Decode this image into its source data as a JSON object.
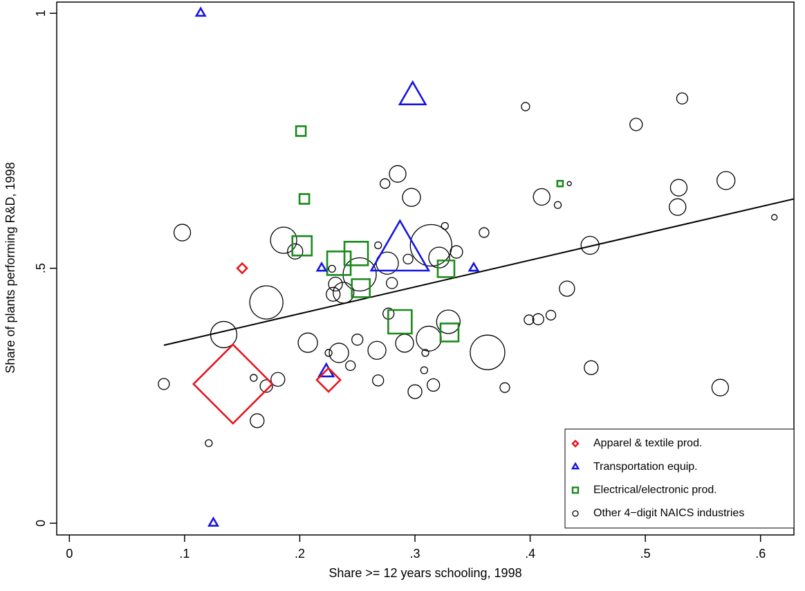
{
  "chart_data": {
    "type": "scatter",
    "x_label": "Share >= 12 years schooling, 1998",
    "y_label": "Share of plants performing R&D, 1998",
    "xlim": [
      -0.011,
      0.629
    ],
    "ylim": [
      -0.023,
      1.022
    ],
    "xticks": [
      0,
      {
        "value": 0.1,
        "label": ".1"
      },
      {
        "value": 0.2,
        "label": ".2"
      },
      {
        "value": 0.3,
        "label": ".3"
      },
      {
        "value": 0.4,
        "label": ".4"
      },
      {
        "value": 0.5,
        "label": ".5"
      },
      {
        "value": 0.6,
        "label": ".6"
      }
    ],
    "yticks": [
      0,
      {
        "value": 0.5,
        "label": ".5"
      },
      1
    ],
    "legend_position": "lower right",
    "fit_line": {
      "x": [
        0.082,
        0.629
      ],
      "y": [
        0.349,
        0.636
      ],
      "color": "#000000"
    },
    "series": [
      {
        "name": "Apparel & textile prod.",
        "marker": "diamond",
        "color": "#e8141b",
        "x": [
          0.15,
          0.225,
          0.142
        ],
        "y": [
          0.5,
          0.281,
          0.273
        ],
        "sizes": [
          49,
          289,
          3249
        ]
      },
      {
        "name": "Transportation equip.",
        "marker": "triangle",
        "color": "#1515e0",
        "x": [
          0.114,
          0.125,
          0.298,
          0.287,
          0.219,
          0.351,
          0.223
        ],
        "y": [
          1.0,
          0.0,
          0.836,
          0.528,
          0.5,
          0.5,
          0.296
        ],
        "sizes": [
          36,
          36,
          324,
          1600,
          36,
          36,
          100
        ]
      },
      {
        "name": "Electrical/electronic prod.",
        "marker": "square",
        "color": "#1a8a1a",
        "x": [
          0.201,
          0.204,
          0.202,
          0.234,
          0.249,
          0.253,
          0.327,
          0.287,
          0.33,
          0.426
        ],
        "y": [
          0.769,
          0.636,
          0.544,
          0.51,
          0.529,
          0.461,
          0.499,
          0.395,
          0.374,
          0.666
        ],
        "sizes": [
          49,
          49,
          196,
          289,
          289,
          169,
          144,
          289,
          169,
          16
        ]
      },
      {
        "name": "Other 4−digit NAICS industries",
        "marker": "circle",
        "color": "#000000",
        "x": [
          0.082,
          0.098,
          0.121,
          0.134,
          0.16,
          0.163,
          0.171,
          0.171,
          0.181,
          0.186,
          0.196,
          0.207,
          0.225,
          0.228,
          0.231,
          0.229,
          0.234,
          0.238,
          0.244,
          0.25,
          0.252,
          0.267,
          0.268,
          0.268,
          0.274,
          0.276,
          0.277,
          0.28,
          0.285,
          0.291,
          0.294,
          0.297,
          0.3,
          0.308,
          0.309,
          0.312,
          0.316,
          0.314,
          0.321,
          0.326,
          0.329,
          0.336,
          0.36,
          0.363,
          0.378,
          0.396,
          0.399,
          0.407,
          0.41,
          0.418,
          0.424,
          0.432,
          0.434,
          0.452,
          0.453,
          0.492,
          0.528,
          0.529,
          0.532,
          0.565,
          0.57,
          0.612
        ],
        "y": [
          0.273,
          0.57,
          0.157,
          0.37,
          0.285,
          0.201,
          0.433,
          0.269,
          0.282,
          0.555,
          0.533,
          0.354,
          0.334,
          0.499,
          0.469,
          0.449,
          0.334,
          0.452,
          0.309,
          0.36,
          0.488,
          0.339,
          0.28,
          0.545,
          0.666,
          0.51,
          0.411,
          0.471,
          0.685,
          0.353,
          0.518,
          0.639,
          0.258,
          0.3,
          0.334,
          0.362,
          0.271,
          0.545,
          0.521,
          0.583,
          0.395,
          0.532,
          0.57,
          0.335,
          0.266,
          0.817,
          0.399,
          0.4,
          0.64,
          0.408,
          0.624,
          0.46,
          0.666,
          0.545,
          0.305,
          0.782,
          0.62,
          0.658,
          0.833,
          0.266,
          0.672,
          0.6
        ],
        "sizes": [
          64,
          144,
          25,
          361,
          25,
          100,
          576,
          81,
          100,
          361,
          121,
          196,
          25,
          25,
          100,
          100,
          196,
          225,
          49,
          64,
          576,
          169,
          64,
          25,
          49,
          256,
          64,
          64,
          144,
          169,
          49,
          169,
          100,
          25,
          25,
          324,
          81,
          900,
          225,
          25,
          289,
          81,
          49,
          625,
          49,
          36,
          49,
          64,
          144,
          49,
          25,
          121,
          9,
          169,
          100,
          81,
          144,
          144,
          64,
          144,
          169,
          16
        ]
      }
    ]
  }
}
